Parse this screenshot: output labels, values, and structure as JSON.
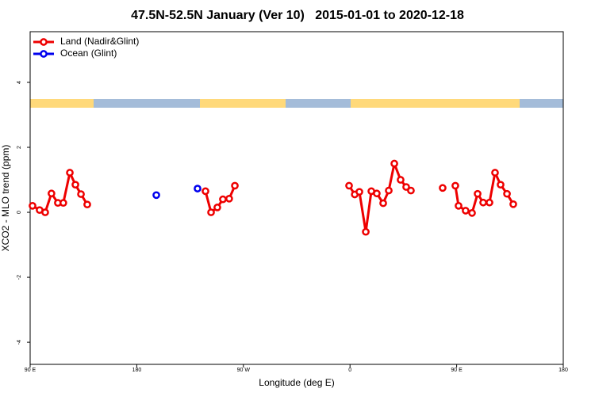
{
  "chart_data": {
    "type": "line",
    "title": "47.5N-52.5N January (Ver 10)   2015-01-01 to 2020-12-18",
    "x_label": "Longitude (deg E)",
    "y_label": "XCO2 - MLO trend (ppm)",
    "xlim": [
      90,
      540
    ],
    "xticks": [
      {
        "value": 90,
        "label": "90 E"
      },
      180,
      {
        "value": 270,
        "label": "90 W"
      },
      {
        "value": 360,
        "label": "0"
      },
      {
        "value": 450,
        "label": "90 E"
      },
      {
        "value": 540,
        "label": "180"
      }
    ],
    "ylim": [
      -4.68,
      5.56
    ],
    "yticks": [
      -4,
      -2,
      0,
      2,
      4
    ],
    "legend": "top-left",
    "series": [
      {
        "name": "Land (Nadir&Glint)",
        "color": "#ee0000",
        "x": [
          92,
          98,
          102.7,
          108,
          113.4,
          118,
          123.5,
          128.2,
          132.9,
          138.2,
          null,
          238,
          242.7,
          248,
          252.7,
          258,
          262.8,
          null,
          359.2,
          364,
          367.9,
          373.3,
          378,
          382.6,
          388,
          392.7,
          397.4,
          402.7,
          407.4,
          411.4,
          null,
          438.2,
          null,
          448.9,
          451.6,
          457.6,
          463,
          467.7,
          472.4,
          477.7,
          482.4,
          487.1,
          492.5,
          497.8
        ],
        "values": [
          0.2,
          0.07,
          0,
          0.58,
          0.29,
          0.29,
          1.22,
          0.85,
          0.56,
          0.24,
          null,
          0.65,
          0,
          0.15,
          0.4,
          0.42,
          0.82,
          null,
          0.82,
          0.55,
          0.63,
          -0.6,
          0.65,
          0.58,
          0.28,
          0.67,
          1.5,
          1.0,
          0.78,
          0.67,
          null,
          0.75,
          null,
          0.82,
          0.2,
          0.05,
          -0.02,
          0.57,
          0.3,
          0.3,
          1.22,
          0.85,
          0.57,
          0.25
        ]
      },
      {
        "name": "Ocean (Glint)",
        "color": "#0000ee",
        "x": [
          196.5,
          null,
          231.3
        ],
        "values": [
          0.53,
          null,
          0.73
        ]
      }
    ]
  }
}
